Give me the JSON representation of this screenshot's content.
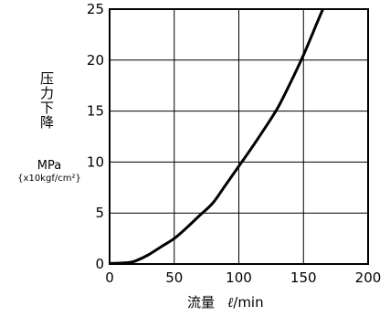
{
  "chart_data": {
    "type": "line",
    "ylabel": "压力下降",
    "yunit": "MPa",
    "yunit_alt": "{x10kgf/cm²}",
    "xlabel": "流量",
    "xunit_symbol": "ℓ",
    "xunit": "/min",
    "xlim": [
      0,
      200
    ],
    "ylim": [
      0,
      25
    ],
    "x_ticks": [
      "0",
      "50",
      "100",
      "150",
      "200"
    ],
    "y_ticks": [
      "0",
      "5",
      "10",
      "15",
      "20",
      "25"
    ],
    "grid": true,
    "series": [
      {
        "x": [
          0,
          10,
          15,
          20,
          30,
          40,
          50,
          60,
          70,
          80,
          90,
          100,
          110,
          120,
          130,
          140,
          150,
          160,
          165
        ],
        "y": [
          0.05,
          0.1,
          0.15,
          0.3,
          0.9,
          1.7,
          2.5,
          3.6,
          4.8,
          6.0,
          7.8,
          9.6,
          11.4,
          13.3,
          15.3,
          17.8,
          20.5,
          23.5,
          25
        ]
      }
    ]
  }
}
